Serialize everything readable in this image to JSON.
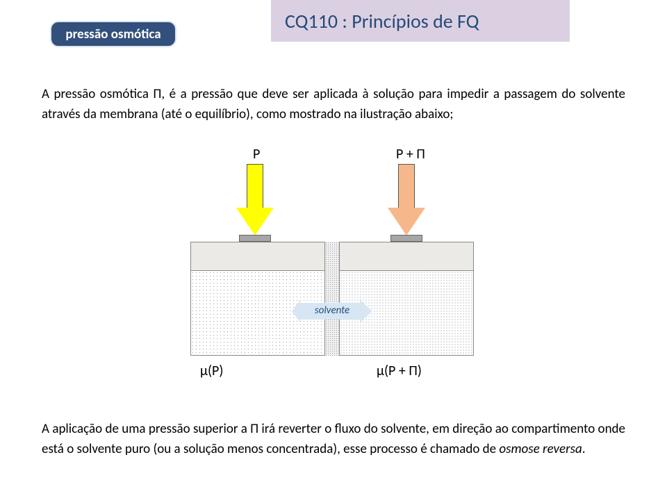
{
  "header": {
    "title": "CQ110 : Princípios de FQ"
  },
  "badge": {
    "label": "pressão osmótica"
  },
  "paragraph1": "A pressão osmótica Π, é a pressão que deve ser aplicada à solução para impedir a passagem do solvente através da membrana (até o equilíbrio), como mostrado na ilustração abaixo;",
  "paragraph2_pre": "A aplicação de uma pressão superior a Π irá reverter o fluxo do solvente, em direção ao compartimento onde está o solvente puro (ou a solução menos concentrada), esse processo é chamado de ",
  "paragraph2_em": "osmose reversa",
  "paragraph2_post": ".",
  "diagram": {
    "label_P": "P",
    "label_PPi": "P + Π",
    "solvente": "solvente",
    "mu_P": "μ(P)",
    "mu_PPi": "μ(P + Π)",
    "colors": {
      "arrow_left_fill": "#ffff00",
      "arrow_right_fill": "#f6b88a",
      "container_top_fill": "#eceae6",
      "solvente_fill": "#d8e6f3",
      "header_band": "#dbd0e2",
      "header_text": "#254a78",
      "badge_bg": "#334f7c",
      "badge_border": "#dbe3ef",
      "piston_fill": "#a6a6a6"
    }
  }
}
